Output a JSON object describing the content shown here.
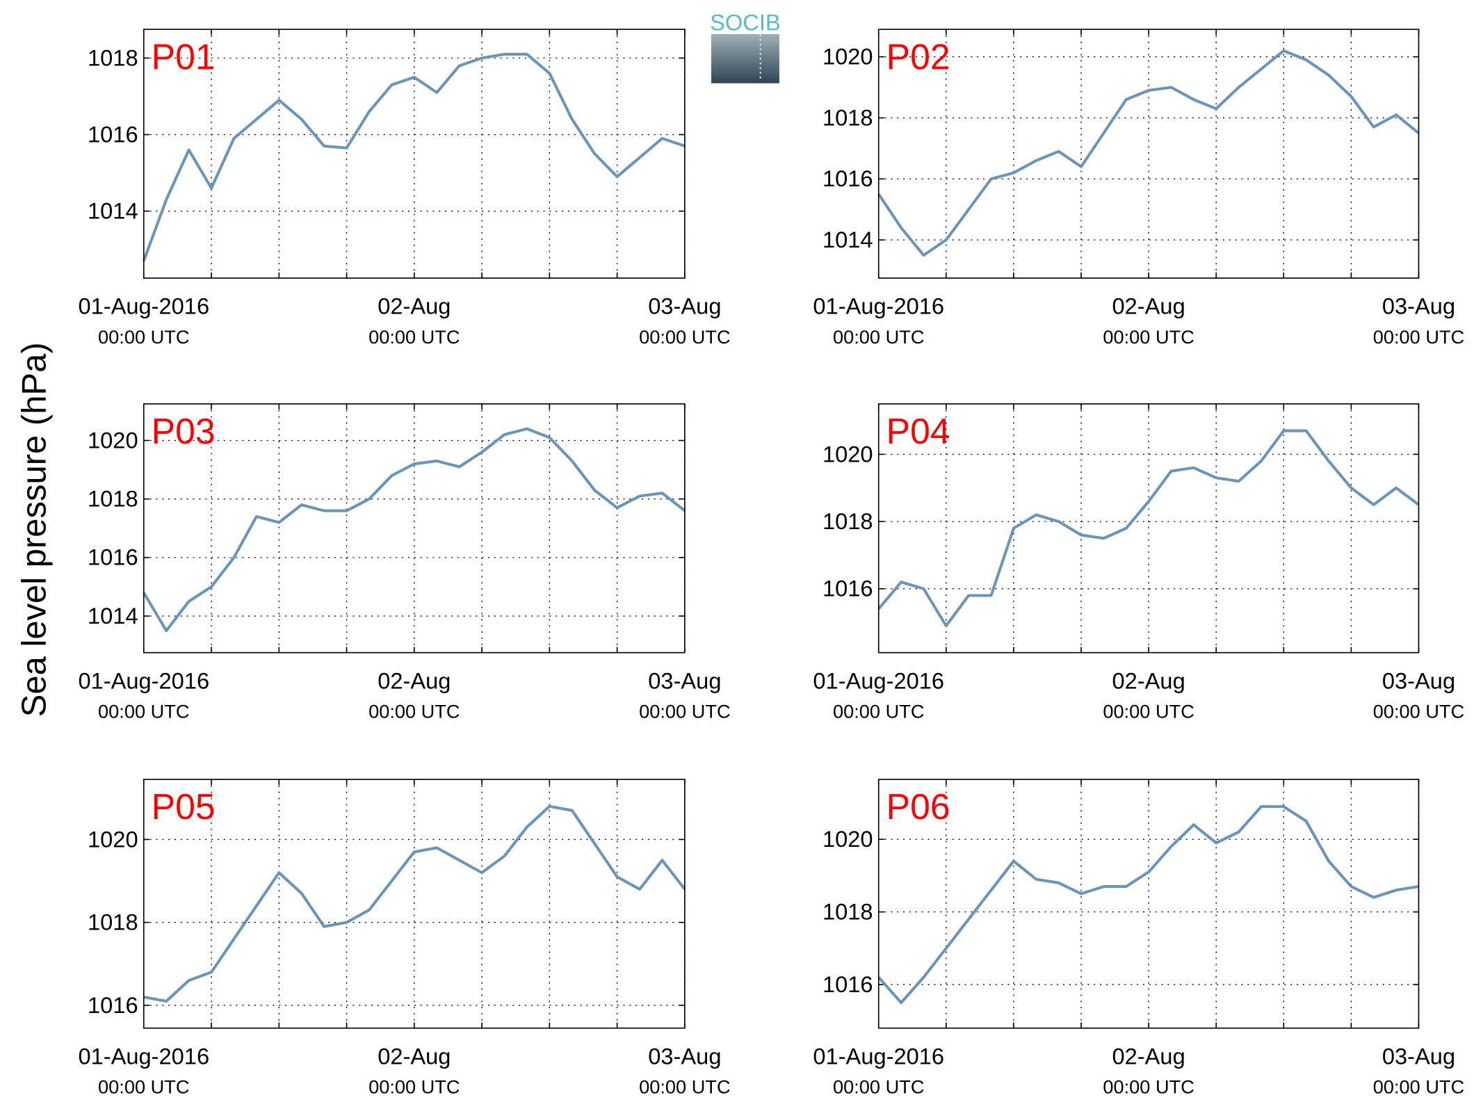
{
  "logo": "SOCIB",
  "ylabel": "Sea level pressure (hPa)",
  "chart_data": [
    {
      "type": "line",
      "title": "P01",
      "color": "#6b95b8",
      "grid": true,
      "x": [
        "2016-08-01T00:00",
        "2016-08-01T02:00",
        "2016-08-01T04:00",
        "2016-08-01T06:00",
        "2016-08-01T08:00",
        "2016-08-01T10:00",
        "2016-08-01T12:00",
        "2016-08-01T14:00",
        "2016-08-01T16:00",
        "2016-08-01T18:00",
        "2016-08-01T20:00",
        "2016-08-01T22:00",
        "2016-08-02T00:00",
        "2016-08-02T02:00",
        "2016-08-02T04:00",
        "2016-08-02T06:00",
        "2016-08-02T08:00",
        "2016-08-02T10:00",
        "2016-08-02T12:00",
        "2016-08-02T14:00",
        "2016-08-02T16:00",
        "2016-08-02T18:00",
        "2016-08-02T20:00",
        "2016-08-02T22:00",
        "2016-08-03T00:00"
      ],
      "values": [
        1012.7,
        1014.3,
        1015.6,
        1014.6,
        1015.9,
        1016.4,
        1016.9,
        1016.4,
        1015.7,
        1015.65,
        1016.6,
        1017.3,
        1017.5,
        1017.1,
        1017.8,
        1018.0,
        1018.1,
        1018.1,
        1017.6,
        1016.4,
        1015.5,
        1014.9,
        1015.4,
        1015.9,
        1015.7
      ],
      "xlim": [
        "2016-08-01T00:00",
        "2016-08-03T00:00"
      ],
      "xticks": [
        {
          "value": "2016-08-01T00:00",
          "label": [
            "01-Aug-2016",
            "00:00 UTC"
          ]
        },
        "2016-08-01T06:00",
        "2016-08-01T12:00",
        "2016-08-01T18:00",
        {
          "value": "2016-08-02T00:00",
          "label": [
            "02-Aug",
            "00:00 UTC"
          ]
        },
        "2016-08-02T06:00",
        "2016-08-02T12:00",
        "2016-08-02T18:00",
        {
          "value": "2016-08-03T00:00",
          "label": [
            "03-Aug",
            "00:00 UTC"
          ]
        }
      ],
      "ylim": [
        1012.25,
        1018.75
      ],
      "yticks": [
        1014,
        1016,
        1018
      ]
    },
    {
      "type": "line",
      "title": "P02",
      "color": "#6b95b8",
      "grid": true,
      "x": [
        "2016-08-01T00:00",
        "2016-08-01T02:00",
        "2016-08-01T04:00",
        "2016-08-01T06:00",
        "2016-08-01T08:00",
        "2016-08-01T10:00",
        "2016-08-01T12:00",
        "2016-08-01T14:00",
        "2016-08-01T16:00",
        "2016-08-01T18:00",
        "2016-08-01T20:00",
        "2016-08-01T22:00",
        "2016-08-02T00:00",
        "2016-08-02T02:00",
        "2016-08-02T04:00",
        "2016-08-02T06:00",
        "2016-08-02T08:00",
        "2016-08-02T10:00",
        "2016-08-02T12:00",
        "2016-08-02T14:00",
        "2016-08-02T16:00",
        "2016-08-02T18:00",
        "2016-08-02T20:00",
        "2016-08-02T22:00",
        "2016-08-03T00:00"
      ],
      "values": [
        1015.5,
        1014.4,
        1013.5,
        1014.0,
        1015.0,
        1016.0,
        1016.2,
        1016.6,
        1016.9,
        1016.4,
        1017.5,
        1018.6,
        1018.9,
        1019.0,
        1018.6,
        1018.3,
        1019.0,
        1019.6,
        1020.2,
        1019.9,
        1019.4,
        1018.7,
        1017.7,
        1018.1,
        1017.5
      ],
      "xlim": [
        "2016-08-01T00:00",
        "2016-08-03T00:00"
      ],
      "xticks": [
        {
          "value": "2016-08-01T00:00",
          "label": [
            "01-Aug-2016",
            "00:00 UTC"
          ]
        },
        "2016-08-01T06:00",
        "2016-08-01T12:00",
        "2016-08-01T18:00",
        {
          "value": "2016-08-02T00:00",
          "label": [
            "02-Aug",
            "00:00 UTC"
          ]
        },
        "2016-08-02T06:00",
        "2016-08-02T12:00",
        "2016-08-02T18:00",
        {
          "value": "2016-08-03T00:00",
          "label": [
            "03-Aug",
            "00:00 UTC"
          ]
        }
      ],
      "ylim": [
        1012.75,
        1020.9
      ],
      "yticks": [
        1014,
        1016,
        1018,
        1020
      ]
    },
    {
      "type": "line",
      "title": "P03",
      "color": "#6b95b8",
      "grid": true,
      "x": [
        "2016-08-01T00:00",
        "2016-08-01T02:00",
        "2016-08-01T04:00",
        "2016-08-01T06:00",
        "2016-08-01T08:00",
        "2016-08-01T10:00",
        "2016-08-01T12:00",
        "2016-08-01T14:00",
        "2016-08-01T16:00",
        "2016-08-01T18:00",
        "2016-08-01T20:00",
        "2016-08-01T22:00",
        "2016-08-02T00:00",
        "2016-08-02T02:00",
        "2016-08-02T04:00",
        "2016-08-02T06:00",
        "2016-08-02T08:00",
        "2016-08-02T10:00",
        "2016-08-02T12:00",
        "2016-08-02T14:00",
        "2016-08-02T16:00",
        "2016-08-02T18:00",
        "2016-08-02T20:00",
        "2016-08-02T22:00",
        "2016-08-03T00:00"
      ],
      "values": [
        1014.8,
        1013.5,
        1014.5,
        1015.0,
        1016.0,
        1017.4,
        1017.2,
        1017.8,
        1017.6,
        1017.6,
        1018.0,
        1018.8,
        1019.2,
        1019.3,
        1019.1,
        1019.6,
        1020.2,
        1020.4,
        1020.1,
        1019.3,
        1018.3,
        1017.7,
        1018.1,
        1018.2,
        1017.6
      ],
      "xlim": [
        "2016-08-01T00:00",
        "2016-08-03T00:00"
      ],
      "xticks": [
        {
          "value": "2016-08-01T00:00",
          "label": [
            "01-Aug-2016",
            "00:00 UTC"
          ]
        },
        "2016-08-01T06:00",
        "2016-08-01T12:00",
        "2016-08-01T18:00",
        {
          "value": "2016-08-02T00:00",
          "label": [
            "02-Aug",
            "00:00 UTC"
          ]
        },
        "2016-08-02T06:00",
        "2016-08-02T12:00",
        "2016-08-02T18:00",
        {
          "value": "2016-08-03T00:00",
          "label": [
            "03-Aug",
            "00:00 UTC"
          ]
        }
      ],
      "ylim": [
        1012.75,
        1021.25
      ],
      "yticks": [
        1014,
        1016,
        1018,
        1020
      ]
    },
    {
      "type": "line",
      "title": "P04",
      "color": "#6b95b8",
      "grid": true,
      "x": [
        "2016-08-01T00:00",
        "2016-08-01T02:00",
        "2016-08-01T04:00",
        "2016-08-01T06:00",
        "2016-08-01T08:00",
        "2016-08-01T10:00",
        "2016-08-01T12:00",
        "2016-08-01T14:00",
        "2016-08-01T16:00",
        "2016-08-01T18:00",
        "2016-08-01T20:00",
        "2016-08-01T22:00",
        "2016-08-02T00:00",
        "2016-08-02T02:00",
        "2016-08-02T04:00",
        "2016-08-02T06:00",
        "2016-08-02T08:00",
        "2016-08-02T10:00",
        "2016-08-02T12:00",
        "2016-08-02T14:00",
        "2016-08-02T16:00",
        "2016-08-02T18:00",
        "2016-08-02T20:00",
        "2016-08-02T22:00",
        "2016-08-03T00:00"
      ],
      "values": [
        1015.4,
        1016.2,
        1016.0,
        1014.9,
        1015.8,
        1015.8,
        1017.8,
        1018.2,
        1018.0,
        1017.6,
        1017.5,
        1017.8,
        1018.6,
        1019.5,
        1019.6,
        1019.3,
        1019.2,
        1019.8,
        1020.7,
        1020.7,
        1019.8,
        1019.0,
        1018.5,
        1019.0,
        1018.5
      ],
      "xlim": [
        "2016-08-01T00:00",
        "2016-08-03T00:00"
      ],
      "xticks": [
        {
          "value": "2016-08-01T00:00",
          "label": [
            "01-Aug-2016",
            "00:00 UTC"
          ]
        },
        "2016-08-01T06:00",
        "2016-08-01T12:00",
        "2016-08-01T18:00",
        {
          "value": "2016-08-02T00:00",
          "label": [
            "02-Aug",
            "00:00 UTC"
          ]
        },
        "2016-08-02T06:00",
        "2016-08-02T12:00",
        "2016-08-02T18:00",
        {
          "value": "2016-08-03T00:00",
          "label": [
            "03-Aug",
            "00:00 UTC"
          ]
        }
      ],
      "ylim": [
        1014.1,
        1021.5
      ],
      "yticks": [
        1016,
        1018,
        1020
      ]
    },
    {
      "type": "line",
      "title": "P05",
      "color": "#6b95b8",
      "grid": true,
      "x": [
        "2016-08-01T00:00",
        "2016-08-01T02:00",
        "2016-08-01T04:00",
        "2016-08-01T06:00",
        "2016-08-01T08:00",
        "2016-08-01T10:00",
        "2016-08-01T12:00",
        "2016-08-01T14:00",
        "2016-08-01T16:00",
        "2016-08-01T18:00",
        "2016-08-01T20:00",
        "2016-08-01T22:00",
        "2016-08-02T00:00",
        "2016-08-02T02:00",
        "2016-08-02T04:00",
        "2016-08-02T06:00",
        "2016-08-02T08:00",
        "2016-08-02T10:00",
        "2016-08-02T12:00",
        "2016-08-02T14:00",
        "2016-08-02T16:00",
        "2016-08-02T18:00",
        "2016-08-02T20:00",
        "2016-08-02T22:00",
        "2016-08-03T00:00"
      ],
      "values": [
        1016.2,
        1016.1,
        1016.6,
        1016.8,
        1017.6,
        1018.4,
        1019.2,
        1018.7,
        1017.9,
        1018.0,
        1018.3,
        1019.0,
        1019.7,
        1019.8,
        1019.5,
        1019.2,
        1019.6,
        1020.3,
        1020.8,
        1020.7,
        1019.9,
        1019.1,
        1018.8,
        1019.5,
        1018.8
      ],
      "xlim": [
        "2016-08-01T00:00",
        "2016-08-03T00:00"
      ],
      "xticks": [
        {
          "value": "2016-08-01T00:00",
          "label": [
            "01-Aug-2016",
            "00:00 UTC"
          ]
        },
        "2016-08-01T06:00",
        "2016-08-01T12:00",
        "2016-08-01T18:00",
        {
          "value": "2016-08-02T00:00",
          "label": [
            "02-Aug",
            "00:00 UTC"
          ]
        },
        "2016-08-02T06:00",
        "2016-08-02T12:00",
        "2016-08-02T18:00",
        {
          "value": "2016-08-03T00:00",
          "label": [
            "03-Aug",
            "00:00 UTC"
          ]
        }
      ],
      "ylim": [
        1015.45,
        1021.45
      ],
      "yticks": [
        1016,
        1018,
        1020
      ]
    },
    {
      "type": "line",
      "title": "P06",
      "color": "#6b95b8",
      "grid": true,
      "x": [
        "2016-08-01T00:00",
        "2016-08-01T02:00",
        "2016-08-01T04:00",
        "2016-08-01T06:00",
        "2016-08-01T08:00",
        "2016-08-01T10:00",
        "2016-08-01T12:00",
        "2016-08-01T14:00",
        "2016-08-01T16:00",
        "2016-08-01T18:00",
        "2016-08-01T20:00",
        "2016-08-01T22:00",
        "2016-08-02T00:00",
        "2016-08-02T02:00",
        "2016-08-02T04:00",
        "2016-08-02T06:00",
        "2016-08-02T08:00",
        "2016-08-02T10:00",
        "2016-08-02T12:00",
        "2016-08-02T14:00",
        "2016-08-02T16:00",
        "2016-08-02T18:00",
        "2016-08-02T20:00",
        "2016-08-02T22:00",
        "2016-08-03T00:00"
      ],
      "values": [
        1016.2,
        1015.5,
        1016.2,
        1017.0,
        1017.8,
        1018.6,
        1019.4,
        1018.9,
        1018.8,
        1018.5,
        1018.7,
        1018.7,
        1019.1,
        1019.8,
        1020.4,
        1019.9,
        1020.2,
        1020.9,
        1020.9,
        1020.5,
        1019.4,
        1018.7,
        1018.4,
        1018.6,
        1018.7
      ],
      "xlim": [
        "2016-08-01T00:00",
        "2016-08-03T00:00"
      ],
      "xticks": [
        {
          "value": "2016-08-01T00:00",
          "label": [
            "01-Aug-2016",
            "00:00 UTC"
          ]
        },
        "2016-08-01T06:00",
        "2016-08-01T12:00",
        "2016-08-01T18:00",
        {
          "value": "2016-08-02T00:00",
          "label": [
            "02-Aug",
            "00:00 UTC"
          ]
        },
        "2016-08-02T06:00",
        "2016-08-02T12:00",
        "2016-08-02T18:00",
        {
          "value": "2016-08-03T00:00",
          "label": [
            "03-Aug",
            "00:00 UTC"
          ]
        }
      ],
      "ylim": [
        1014.8,
        1021.65
      ],
      "yticks": [
        1016,
        1018,
        1020
      ]
    }
  ]
}
